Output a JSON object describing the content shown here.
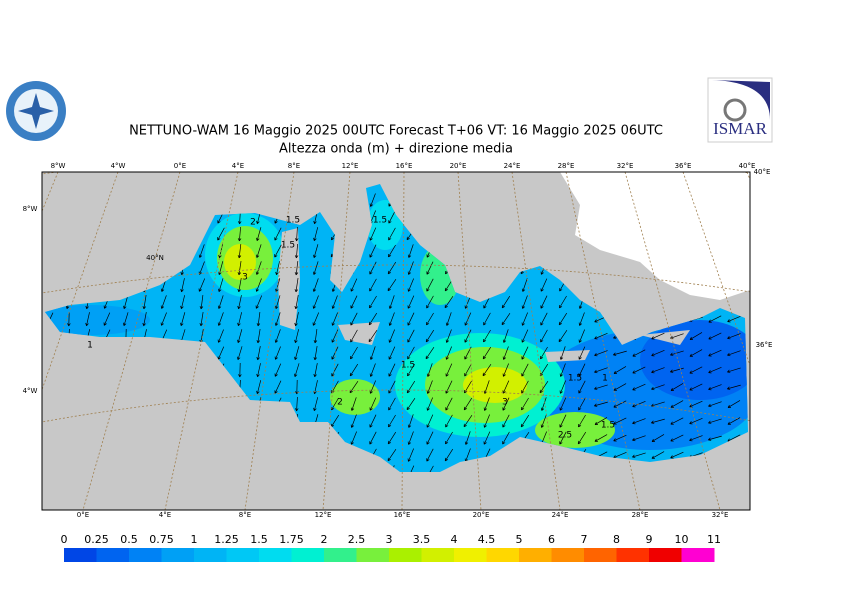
{
  "header": {
    "title": "NETTUNO-WAM  16   Maggio  2025 00UTC Forecast T+06 VT: 16   Maggio  2025 06UTC",
    "subtitle": "Altezza onda (m) + direzione media"
  },
  "logos": {
    "right": "ISMAR"
  },
  "map": {
    "top_labels": [
      "8°W",
      "4°W",
      "0°E",
      "4°E",
      "8°E",
      "12°E",
      "16°E",
      "20°E",
      "24°E",
      "28°E",
      "32°E",
      "36°E",
      "40°E"
    ],
    "bottom_labels": [
      "0°E",
      "4°E",
      "8°E",
      "12°E",
      "16°E",
      "20°E",
      "24°E",
      "28°E",
      "32°E"
    ],
    "left_labels": [
      "8°W",
      "4°W"
    ],
    "right_labels": [
      "40°E",
      "36°E"
    ],
    "inner_labels": [
      "40°N"
    ],
    "contour_labels": [
      "2",
      "1.5",
      "3",
      "1.5",
      "1.5",
      "1.5",
      "2",
      "3",
      "2.5",
      "1.5",
      "1.5",
      "1",
      "1"
    ]
  },
  "legend": {
    "labels": [
      "0",
      "0.25",
      "0.5",
      "0.75",
      "1",
      "1.25",
      "1.5",
      "1.75",
      "2",
      "2.5",
      "3",
      "3.5",
      "4",
      "4.5",
      "5",
      "6",
      "7",
      "8",
      "9",
      "10",
      "11"
    ],
    "colors": [
      "#0046e6",
      "#0064f0",
      "#0082f5",
      "#00a0f5",
      "#00b4f5",
      "#00c8f5",
      "#00dcf0",
      "#00f0d2",
      "#32f08c",
      "#78f03c",
      "#aaf000",
      "#d2f000",
      "#f0f000",
      "#ffd700",
      "#ffaf00",
      "#ff8c00",
      "#ff6400",
      "#ff3200",
      "#f00000",
      "#ff00d2"
    ]
  }
}
